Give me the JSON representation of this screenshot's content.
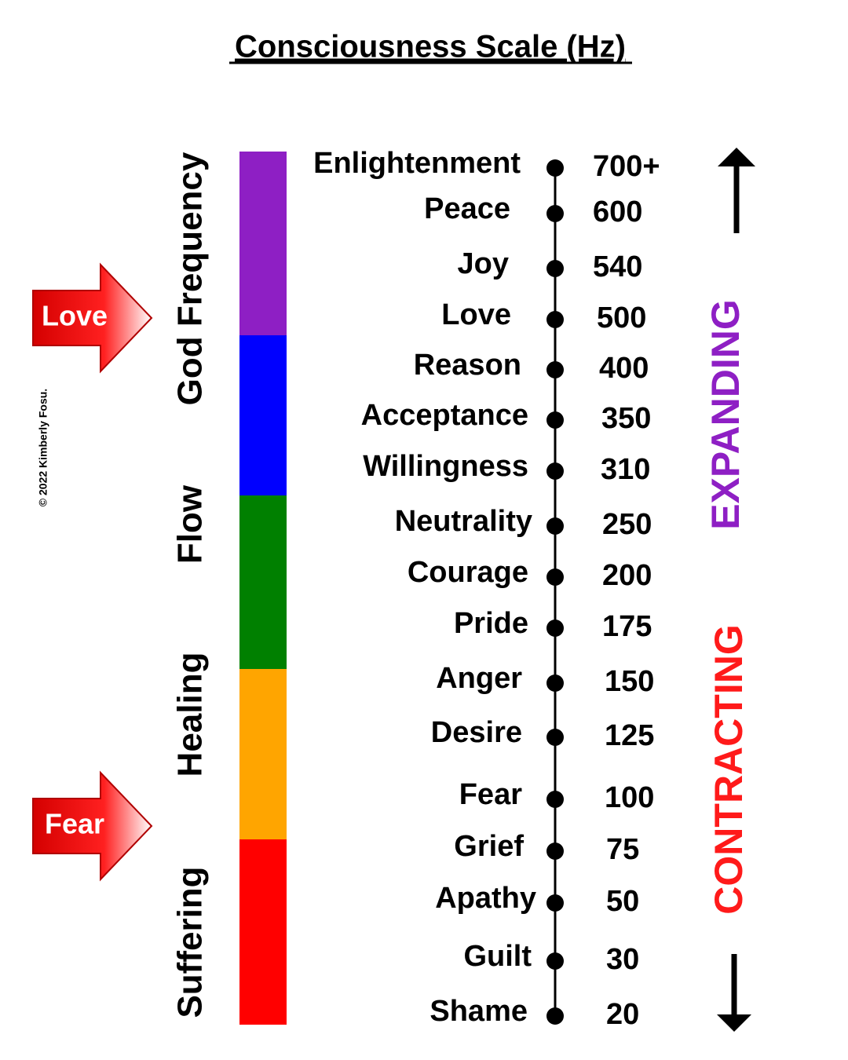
{
  "title": "Consciousness Scale (Hz)",
  "copyright": "© 2022 Kimberly Fosu.",
  "bands": [
    {
      "label": "God Frequency",
      "color": "#8e1fc4"
    },
    {
      "label": "Flow",
      "color": "#0000ff"
    },
    {
      "label": "Healing",
      "color": "#ffa500"
    },
    {
      "label": "Suffering",
      "color": "#ff0000"
    }
  ],
  "markers": [
    "Love",
    "Fear"
  ],
  "levels": [
    {
      "label": "Enlightenment",
      "value": "700+"
    },
    {
      "label": "Peace",
      "value": "600"
    },
    {
      "label": "Joy",
      "value": "540"
    },
    {
      "label": "Love",
      "value": "500"
    },
    {
      "label": "Reason",
      "value": "400"
    },
    {
      "label": "Acceptance",
      "value": "350"
    },
    {
      "label": "Willingness",
      "value": "310"
    },
    {
      "label": "Neutrality",
      "value": "250"
    },
    {
      "label": "Courage",
      "value": "200"
    },
    {
      "label": "Pride",
      "value": "175"
    },
    {
      "label": "Anger",
      "value": "150"
    },
    {
      "label": "Desire",
      "value": "125"
    },
    {
      "label": "Fear",
      "value": "100"
    },
    {
      "label": "Grief",
      "value": "75"
    },
    {
      "label": "Apathy",
      "value": "50"
    },
    {
      "label": "Guilt",
      "value": "30"
    },
    {
      "label": "Shame",
      "value": "20"
    }
  ],
  "expanding": "EXPANDING",
  "contracting": "CONTRACTING"
}
